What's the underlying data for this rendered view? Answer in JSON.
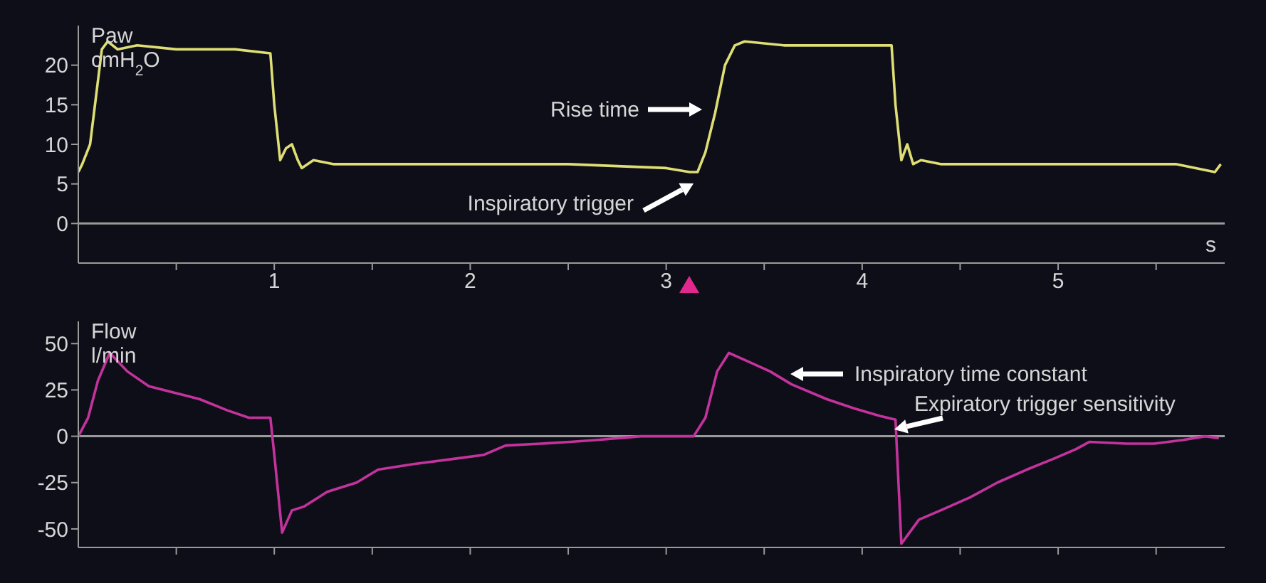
{
  "chart_data": [
    {
      "type": "line",
      "ylabel": "Paw\ncmH$_{2}$O",
      "xlabel": "s",
      "color": "#dede74",
      "x": [
        0,
        0.02,
        0.06,
        0.09,
        0.12,
        0.15,
        0.2,
        0.3,
        0.5,
        0.8,
        0.98,
        1.0,
        1.03,
        1.06,
        1.09,
        1.12,
        1.14,
        1.2,
        1.3,
        1.5,
        2.0,
        2.5,
        3.0,
        3.12,
        3.16,
        3.2,
        3.25,
        3.3,
        3.35,
        3.4,
        3.6,
        3.9,
        4.15,
        4.17,
        4.2,
        4.23,
        4.26,
        4.3,
        4.4,
        4.7,
        5.0,
        5.3,
        5.6,
        5.8,
        5.83
      ],
      "values": [
        6.5,
        7.5,
        10,
        16,
        22,
        23,
        22,
        22.5,
        22,
        22,
        21.5,
        15,
        8,
        9.5,
        10,
        8,
        7,
        8,
        7.5,
        7.5,
        7.5,
        7.5,
        7,
        6.5,
        6.5,
        9,
        14,
        20,
        22.5,
        23,
        22.5,
        22.5,
        22.5,
        15,
        8,
        10,
        7.5,
        8,
        7.5,
        7.5,
        7.5,
        7.5,
        7.5,
        6.5,
        7.5
      ],
      "xlim": [
        0,
        5.85
      ],
      "xticks": [
        {
          "value": 0.5,
          "label": null
        },
        1,
        {
          "value": 1.5,
          "label": null
        },
        2,
        {
          "value": 2.5,
          "label": null
        },
        3,
        {
          "value": 3.5,
          "label": null
        },
        4,
        {
          "value": 4.5,
          "label": null
        },
        5,
        {
          "value": 5.5,
          "label": null
        }
      ],
      "ylim": [
        -5,
        25
      ],
      "yticks": [
        0,
        5,
        10,
        15,
        20
      ],
      "ref_lines": [
        {
          "axis": "y",
          "value": 0,
          "color": "#9a9a9a"
        }
      ],
      "annotations": [
        "Rise time",
        "Inspiratory trigger"
      ]
    },
    {
      "type": "line",
      "ylabel": "Flow\nl/min",
      "color": "#c4339c",
      "x": [
        0,
        0.05,
        0.1,
        0.16,
        0.25,
        0.36,
        0.51,
        0.62,
        0.76,
        0.87,
        0.98,
        1.0,
        1.04,
        1.09,
        1.15,
        1.27,
        1.42,
        1.53,
        1.71,
        1.93,
        2.07,
        2.18,
        2.36,
        2.51,
        2.65,
        2.87,
        3.0,
        3.14,
        3.2,
        3.26,
        3.32,
        3.53,
        3.64,
        3.82,
        3.96,
        4.09,
        4.17,
        4.2,
        4.29,
        4.4,
        4.55,
        4.69,
        4.84,
        4.98,
        5.09,
        5.16,
        5.35,
        5.49,
        5.64,
        5.75,
        5.82
      ],
      "values": [
        0,
        10,
        30,
        45,
        35,
        27,
        23,
        20,
        14,
        10,
        10,
        -10,
        -52,
        -40,
        -38,
        -30,
        -25,
        -18,
        -15,
        -12,
        -10,
        -5,
        -4,
        -3,
        -2,
        0,
        0,
        0,
        10,
        35,
        45,
        35,
        28,
        20,
        15,
        11,
        9,
        -58,
        -45,
        -40,
        -33,
        -25,
        -18,
        -12,
        -7,
        -3,
        -4,
        -4,
        -2,
        0,
        -1
      ],
      "xlim": [
        0,
        5.85
      ],
      "xticks": [
        {
          "value": 0.5,
          "label": null
        },
        {
          "value": 1,
          "label": null
        },
        {
          "value": 1.5,
          "label": null
        },
        {
          "value": 2,
          "label": null
        },
        {
          "value": 2.5,
          "label": null
        },
        {
          "value": 3,
          "label": null
        },
        {
          "value": 3.5,
          "label": null
        },
        {
          "value": 4,
          "label": null
        },
        {
          "value": 4.5,
          "label": null
        },
        {
          "value": 5,
          "label": null
        },
        {
          "value": 5.5,
          "label": null
        }
      ],
      "ylim": [
        -60,
        62
      ],
      "yticks": [
        -50,
        -25,
        0,
        25,
        50
      ],
      "tick_labels": "y",
      "ref_lines": [
        {
          "axis": "y",
          "value": 0,
          "color": "#9a9a9a"
        }
      ],
      "annotations": [
        "Inspiratory time constant",
        "Expiratory trigger sensitivity"
      ]
    }
  ]
}
